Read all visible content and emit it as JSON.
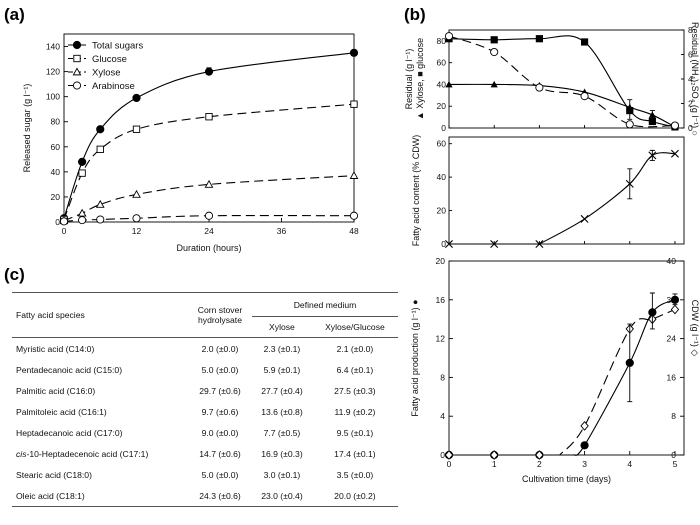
{
  "panel_labels": {
    "a": "(a)",
    "b": "(b)",
    "c": "(c)"
  },
  "chart_data": [
    {
      "panel": "a",
      "type": "line",
      "xlabel": "Duration (hours)",
      "ylabel": "Released sugar  (g l⁻¹)",
      "xlim": [
        0,
        48
      ],
      "ylim": [
        0,
        150
      ],
      "xticks": [
        0,
        12,
        24,
        36,
        48
      ],
      "yticks": [
        0,
        20,
        40,
        60,
        80,
        100,
        120,
        140
      ],
      "legend_position": "top-left",
      "series": [
        {
          "name": "Total sugars",
          "marker": "filled-circle",
          "line": "solid",
          "x": [
            0,
            3,
            6,
            12,
            24,
            48
          ],
          "y": [
            3,
            48,
            74,
            99,
            120,
            135
          ]
        },
        {
          "name": "Glucose",
          "marker": "open-square",
          "line": "dashed",
          "x": [
            0,
            3,
            6,
            12,
            24,
            48
          ],
          "y": [
            2,
            39,
            58,
            74,
            84,
            94
          ]
        },
        {
          "name": "Xylose",
          "marker": "open-triangle",
          "line": "dashed",
          "x": [
            0,
            3,
            6,
            12,
            24,
            48
          ],
          "y": [
            1,
            7,
            14,
            22,
            30,
            37
          ]
        },
        {
          "name": "Arabinose",
          "marker": "open-circle",
          "line": "dashed",
          "x": [
            0,
            3,
            6,
            12,
            24,
            48
          ],
          "y": [
            0.5,
            1.5,
            2,
            3,
            5,
            5
          ]
        }
      ]
    },
    {
      "panel": "b-top",
      "type": "line",
      "xlim": [
        0,
        5.2
      ],
      "ylim": [
        0,
        90
      ],
      "y2lim": [
        0,
        8
      ],
      "yticks": [
        0,
        20,
        40,
        60,
        80
      ],
      "y2ticks": [
        0,
        2,
        4,
        6,
        8
      ],
      "ylabel": "Residual (g l⁻¹)",
      "ylabel_series": "▲ Xylose, ■ glucose",
      "y2label": "Residual (NH₄)₂SO₄ (g l⁻¹) ○",
      "series": [
        {
          "name": "Glucose",
          "marker": "filled-square",
          "axis": "left",
          "line": "solid",
          "x": [
            0,
            1,
            2,
            3,
            4,
            4.5,
            5
          ],
          "y": [
            82,
            81,
            82,
            79,
            16,
            6,
            1
          ]
        },
        {
          "name": "Xylose",
          "marker": "filled-triangle",
          "axis": "left",
          "line": "solid",
          "x": [
            0,
            1,
            2,
            3,
            4,
            4.5,
            5
          ],
          "y": [
            40,
            40,
            39,
            33,
            19,
            12,
            1
          ]
        },
        {
          "name": "(NH4)2SO4",
          "marker": "open-circle",
          "axis": "right",
          "line": "dashed",
          "x": [
            0,
            1,
            2,
            3,
            4,
            5
          ],
          "y": [
            7.5,
            6.2,
            3.3,
            2.6,
            0.3,
            0.2
          ]
        }
      ]
    },
    {
      "panel": "b-middle",
      "type": "line",
      "ylabel": "Fatty acid content (% CDW)",
      "xlim": [
        0,
        5.2
      ],
      "ylim": [
        0,
        64
      ],
      "yticks": [
        0,
        20,
        40,
        60
      ],
      "series": [
        {
          "name": "Fatty acid content",
          "marker": "x",
          "line": "solid",
          "x": [
            0,
            1,
            2,
            3,
            4,
            4.5,
            5
          ],
          "y": [
            0,
            0,
            0,
            15,
            36,
            53,
            54
          ]
        }
      ]
    },
    {
      "panel": "b-bottom",
      "type": "line",
      "xlabel": "Cultivation time (days)",
      "ylabel": "Fatty acid production (g l⁻¹) ●",
      "y2label": "CDW (g l⁻¹) ◇",
      "xlim": [
        0,
        5.2
      ],
      "xticks": [
        0,
        1,
        2,
        3,
        4,
        5
      ],
      "ylim": [
        0,
        20
      ],
      "yticks": [
        0,
        4,
        8,
        12,
        16,
        20
      ],
      "y2lim": [
        0,
        40
      ],
      "y2ticks": [
        0,
        8,
        16,
        24,
        32,
        40
      ],
      "series": [
        {
          "name": "Fatty acid production",
          "marker": "filled-circle",
          "axis": "left",
          "line": "solid",
          "x": [
            0,
            1,
            2,
            3,
            4,
            4.5,
            5
          ],
          "y": [
            0,
            0,
            0,
            1,
            9.5,
            14.7,
            16
          ]
        },
        {
          "name": "CDW",
          "marker": "open-diamond",
          "axis": "right",
          "line": "dashed",
          "x": [
            0,
            1,
            2,
            3,
            4,
            4.5,
            5
          ],
          "y": [
            0,
            0,
            0,
            6,
            26,
            28,
            30
          ]
        }
      ]
    }
  ],
  "table_c": {
    "header": {
      "species": "Fatty acid species",
      "corn_line1": "Corn stover",
      "corn_line2": "hydrolysate",
      "defined": "Defined medium",
      "xylose": "Xylose",
      "xylose_glucose": "Xylose/Glucose"
    },
    "rows": [
      {
        "species": "Myristic acid (C14:0)",
        "corn": "2.0 (±0.0)",
        "xylose": "2.3 (±0.1)",
        "xg": "2.1 (±0.0)"
      },
      {
        "species": "Pentadecanoic acid (C15:0)",
        "corn": "5.0 (±0.0)",
        "xylose": "5.9 (±0.1)",
        "xg": "6.4 (±0.1)"
      },
      {
        "species": "Palmitic acid (C16:0)",
        "corn": "29.7 (±0.6)",
        "xylose": "27.7 (±0.4)",
        "xg": "27.5 (±0.3)"
      },
      {
        "species": "Palmitoleic acid (C16:1)",
        "corn": "9.7 (±0.6)",
        "xylose": "13.6 (±0.8)",
        "xg": "11.9 (±0.2)"
      },
      {
        "species": "Heptadecanoic acid (C17:0)",
        "corn": "9.0 (±0.0)",
        "xylose": "7.7 (±0.5)",
        "xg": "9.5 (±0.1)"
      },
      {
        "species_prefix": "cis",
        "species": "-10-Heptadecenoic acid (C17:1)",
        "corn": "14.7 (±0.6)",
        "xylose": "16.9 (±0.3)",
        "xg": "17.4 (±0.1)"
      },
      {
        "species": "Stearic acid (C18:0)",
        "corn": "5.0 (±0.0)",
        "xylose": "3.0 (±0.1)",
        "xg": "3.5 (±0.0)"
      },
      {
        "species": "Oleic acid (C18:1)",
        "corn": "24.3 (±0.6)",
        "xylose": "23.0 (±0.4)",
        "xg": "20.0 (±0.2)"
      }
    ]
  }
}
